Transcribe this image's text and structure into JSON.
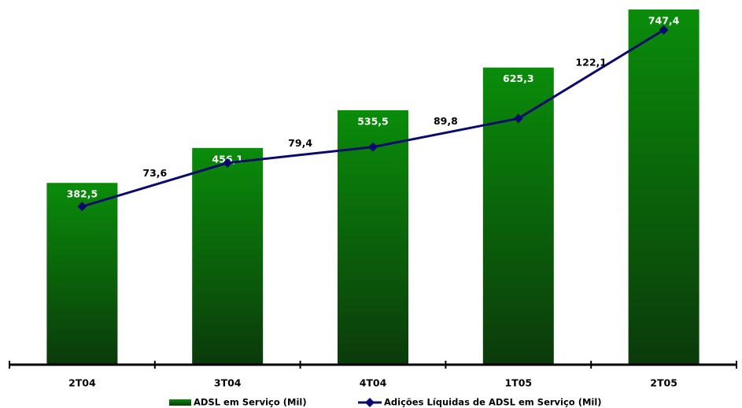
{
  "chart_data": {
    "type": "bar",
    "categories": [
      "2T04",
      "3T04",
      "4T04",
      "1T05",
      "2T05"
    ],
    "series": [
      {
        "name": "ADSL em Serviço (Mil)",
        "type": "bar",
        "color": "#0a7a0a",
        "values": [
          382.5,
          456.1,
          535.5,
          625.3,
          747.4
        ],
        "value_labels": [
          "382,5",
          "456,1",
          "535,5",
          "625,3",
          "747,4"
        ]
      },
      {
        "name": "Adições Líquidas de ADSL em Serviço (Mil)",
        "type": "line",
        "axis": "y2",
        "color": "#0a0a6e",
        "values": [
          57.7,
          73.6,
          79.4,
          89.8,
          122.1
        ],
        "value_labels": [
          null,
          "73,6",
          "79,4",
          "89,8",
          "122,1"
        ]
      }
    ],
    "ylim": [
      0,
      750
    ],
    "y2lim": [
      0,
      130
    ],
    "legend": "bottom"
  }
}
